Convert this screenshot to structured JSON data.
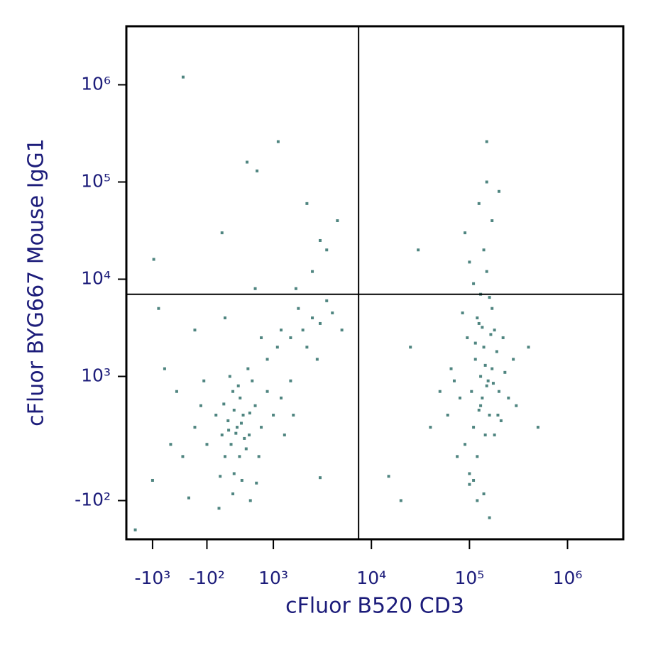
{
  "chart_data": {
    "type": "scatter",
    "xlabel": "cFluor B520 CD3",
    "ylabel": "cFluor BYG667 Mouse IgG1",
    "xscale": "biexponential",
    "yscale": "biexponential",
    "color": "#4f8580",
    "xlim": [
      -1850,
      3700000
    ],
    "ylim": [
      -250,
      4000000
    ],
    "xticks": [
      {
        "value": -1000,
        "label": "-10³"
      },
      {
        "value": -100,
        "label": "-10²"
      },
      {
        "value": 1000,
        "label": "10³"
      },
      {
        "value": 10000,
        "label": "10⁴"
      },
      {
        "value": 100000,
        "label": "10⁵"
      },
      {
        "value": 1000000,
        "label": "10⁶"
      }
    ],
    "yticks": [
      {
        "value": -100,
        "label": "-10²"
      },
      {
        "value": 1000,
        "label": "10³"
      },
      {
        "value": 10000,
        "label": "10⁴"
      },
      {
        "value": 100000,
        "label": "10⁵"
      },
      {
        "value": 1000000,
        "label": "10⁶"
      }
    ],
    "quadrant_x": 7400,
    "quadrant_y": 7000,
    "x": [
      400,
      300,
      500,
      600,
      200,
      700,
      350,
      450,
      550,
      250,
      800,
      150,
      -100,
      -300,
      900,
      650,
      120,
      480,
      330,
      620,
      1000,
      1200,
      -500,
      -200,
      50,
      420,
      760,
      280,
      580,
      900,
      1500,
      -600,
      -700,
      -400,
      100,
      720,
      350,
      470,
      520,
      380,
      260,
      440,
      610,
      180,
      330,
      1300,
      1600,
      -150,
      -800,
      1100,
      1500,
      2000,
      2500,
      1800,
      3000,
      2200,
      1200,
      4000,
      800,
      3500,
      2800,
      5000,
      1700,
      2500,
      3000,
      4500,
      -300,
      -900,
      700,
      200,
      -494,
      1120,
      565,
      730,
      -980,
      150,
      2200,
      3500,
      130000,
      110000,
      150000,
      170000,
      90000,
      120000,
      140000,
      180000,
      100000,
      160000,
      200000,
      80000,
      130000,
      115000,
      145000,
      170000,
      130000,
      110000,
      150000,
      120000,
      190000,
      230000,
      250000,
      60000,
      70000,
      95000,
      125000,
      160000,
      140000,
      100000,
      170000,
      125000,
      150000,
      200000,
      90000,
      110000,
      140000,
      160000,
      120000,
      100000,
      180000,
      210000,
      75000,
      65000,
      50000,
      40000,
      300000,
      280000,
      220000,
      85000,
      135000,
      155000,
      105000,
      125000,
      145000,
      175000,
      195000,
      115000,
      165000,
      135000,
      150000,
      3000,
      15000,
      25000,
      20000,
      500000,
      400000,
      30000,
      -1000,
      -1500
    ],
    "y": [
      300,
      200,
      400,
      250,
      150,
      500,
      100,
      600,
      180,
      350,
      300,
      250,
      200,
      300,
      700,
      900,
      80,
      50,
      -50,
      -100,
      400,
      600,
      150,
      500,
      400,
      800,
      150,
      1000,
      1200,
      1500,
      900,
      700,
      200,
      -80,
      -120,
      30,
      450,
      330,
      230,
      260,
      280,
      150,
      420,
      520,
      700,
      250,
      400,
      900,
      1200,
      2000,
      2500,
      3000,
      4000,
      5000,
      3500,
      2000,
      3000,
      4500,
      2500,
      6000,
      1500,
      3000,
      8000,
      12000,
      25000,
      40000,
      3000,
      5000,
      8000,
      4000,
      1200000,
      260000,
      160000,
      130000,
      16000,
      30000,
      60000,
      20000,
      500,
      300,
      800,
      1200,
      200,
      150,
      2000,
      3000,
      100,
      400,
      700,
      600,
      1000,
      1500,
      250,
      5000,
      7000,
      9000,
      12000,
      4000,
      1800,
      1100,
      600,
      400,
      900,
      2500,
      3500,
      6500,
      20000,
      15000,
      40000,
      60000,
      100000,
      80000,
      30000,
      50,
      -50,
      -150,
      -100,
      20,
      250,
      350,
      150,
      1200,
      700,
      300,
      500,
      1500,
      2500,
      4500,
      600,
      900,
      700,
      450,
      1300,
      850,
      400,
      2200,
      2700,
      3200,
      260000,
      70,
      80,
      2000,
      -100,
      300,
      2000,
      20000,
      50,
      -200
    ]
  }
}
